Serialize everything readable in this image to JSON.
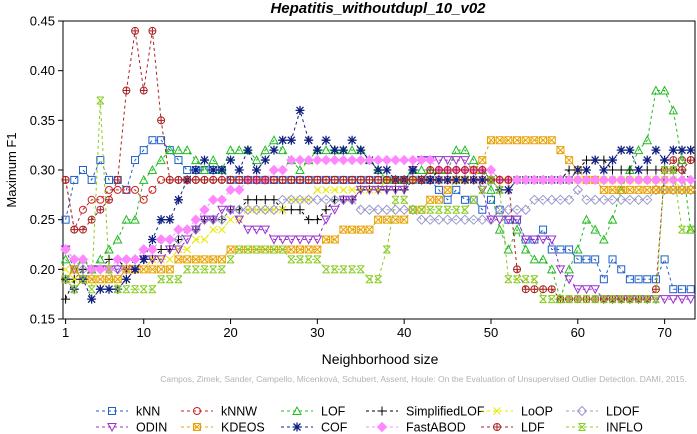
{
  "chart_data": {
    "type": "line",
    "title": "Hepatitis_withoutdupl_10_v02",
    "xlabel": "Neighborhood size",
    "ylabel": "Maximum F1",
    "xlim": [
      1,
      73
    ],
    "ylim": [
      0.15,
      0.45
    ],
    "x_ticks": [
      10,
      20,
      30,
      40,
      50,
      60,
      70
    ],
    "x_tick_labels": [
      "10",
      "20",
      "30",
      "40",
      "50",
      "60",
      "70"
    ],
    "y_ticks": [
      0.15,
      0.2,
      0.25,
      0.3,
      0.35,
      0.4,
      0.45
    ],
    "y_tick_labels": [
      "0.15",
      "0.20",
      "0.25",
      "0.30",
      "0.35",
      "0.40",
      "0.45"
    ],
    "x_first_tick": "1",
    "grid": false,
    "legend_position": "bottom",
    "credit": "Campos, Zimek, Sander, Campello, Micenková, Schubert, Assent, Houle: On the Evaluation of Unsupervised Outlier Detection. DAMI, 2015.",
    "series": [
      {
        "name": "kNN",
        "color": "#1f5fc8",
        "marker": "square",
        "values": [
          0.25,
          0.29,
          0.3,
          0.29,
          0.31,
          0.29,
          0.29,
          0.28,
          0.31,
          0.32,
          0.33,
          0.33,
          0.32,
          0.31,
          0.3,
          0.3,
          0.3,
          0.3,
          0.3,
          0.29,
          0.29,
          0.29,
          0.29,
          0.29,
          0.29,
          0.29,
          0.29,
          0.29,
          0.29,
          0.29,
          0.29,
          0.29,
          0.29,
          0.29,
          0.29,
          0.29,
          0.29,
          0.29,
          0.29,
          0.29,
          0.29,
          0.29,
          0.29,
          0.28,
          0.27,
          0.28,
          0.27,
          0.27,
          0.26,
          0.27,
          0.26,
          0.25,
          0.25,
          0.23,
          0.23,
          0.24,
          0.22,
          0.22,
          0.22,
          0.21,
          0.21,
          0.21,
          0.19,
          0.21,
          0.2,
          0.19,
          0.19,
          0.19,
          0.19,
          0.21,
          0.18,
          0.18,
          0.18
        ]
      },
      {
        "name": "kNNW",
        "color": "#cc2222",
        "marker": "circle",
        "values": [
          0.29,
          0.24,
          0.26,
          0.27,
          0.27,
          0.28,
          0.28,
          0.28,
          0.28,
          0.27,
          0.28,
          0.29,
          0.29,
          0.29,
          0.29,
          0.29,
          0.29,
          0.29,
          0.29,
          0.29,
          0.29,
          0.29,
          0.29,
          0.29,
          0.29,
          0.29,
          0.29,
          0.29,
          0.29,
          0.29,
          0.29,
          0.29,
          0.29,
          0.29,
          0.29,
          0.29,
          0.29,
          0.29,
          0.29,
          0.29,
          0.29,
          0.29,
          0.29,
          0.29,
          0.29,
          0.29,
          0.29,
          0.29,
          0.29,
          0.29,
          0.29,
          0.29,
          0.29,
          0.29,
          0.29,
          0.29,
          0.29,
          0.29,
          0.29,
          0.29,
          0.29,
          0.29,
          0.29,
          0.29,
          0.29,
          0.29,
          0.29,
          0.29,
          0.29,
          0.29,
          0.3,
          0.31,
          0.31
        ]
      },
      {
        "name": "LOF",
        "color": "#22bb22",
        "marker": "triangle-up",
        "values": [
          0.21,
          0.2,
          0.21,
          0.2,
          0.21,
          0.22,
          0.23,
          0.25,
          0.25,
          0.29,
          0.3,
          0.31,
          0.32,
          0.32,
          0.32,
          0.31,
          0.3,
          0.31,
          0.3,
          0.32,
          0.32,
          0.32,
          0.31,
          0.32,
          0.33,
          0.32,
          0.31,
          0.3,
          0.31,
          0.32,
          0.32,
          0.32,
          0.32,
          0.32,
          0.32,
          0.31,
          0.3,
          0.29,
          0.29,
          0.29,
          0.3,
          0.3,
          0.3,
          0.3,
          0.3,
          0.32,
          0.32,
          0.31,
          0.3,
          0.28,
          0.24,
          0.22,
          0.24,
          0.22,
          0.21,
          0.21,
          0.2,
          0.17,
          0.2,
          0.22,
          0.25,
          0.24,
          0.23,
          0.25,
          0.28,
          0.3,
          0.32,
          0.33,
          0.38,
          0.38,
          0.36,
          0.31,
          0.24
        ]
      },
      {
        "name": "SimplifiedLOF",
        "color": "#000000",
        "marker": "plus",
        "values": [
          0.17,
          0.19,
          0.2,
          0.2,
          0.2,
          0.21,
          0.21,
          0.2,
          0.21,
          0.21,
          0.21,
          0.22,
          0.22,
          0.23,
          0.24,
          0.24,
          0.25,
          0.25,
          0.25,
          0.26,
          0.26,
          0.27,
          0.27,
          0.27,
          0.27,
          0.26,
          0.26,
          0.26,
          0.25,
          0.25,
          0.26,
          0.27,
          0.27,
          0.27,
          0.28,
          0.28,
          0.28,
          0.28,
          0.28,
          0.28,
          0.29,
          0.29,
          0.29,
          0.3,
          0.3,
          0.3,
          0.3,
          0.3,
          0.3,
          0.3,
          0.29,
          0.29,
          0.29,
          0.29,
          0.29,
          0.29,
          0.29,
          0.29,
          0.3,
          0.3,
          0.31,
          0.31,
          0.31,
          0.3,
          0.3,
          0.3,
          0.3,
          0.3,
          0.3,
          0.3,
          0.3,
          0.3,
          0.29
        ]
      },
      {
        "name": "LoOP",
        "color": "#e8e800",
        "marker": "x",
        "values": [
          0.2,
          0.19,
          0.19,
          0.19,
          0.18,
          0.19,
          0.19,
          0.19,
          0.2,
          0.2,
          0.21,
          0.21,
          0.21,
          0.22,
          0.22,
          0.23,
          0.23,
          0.24,
          0.24,
          0.25,
          0.25,
          0.26,
          0.26,
          0.26,
          0.26,
          0.26,
          0.27,
          0.27,
          0.27,
          0.28,
          0.28,
          0.28,
          0.28,
          0.28,
          0.28,
          0.28,
          0.28,
          0.29,
          0.29,
          0.29,
          0.29,
          0.29,
          0.29,
          0.29,
          0.29,
          0.29,
          0.29,
          0.29,
          0.29,
          0.29,
          0.29,
          0.29,
          0.29,
          0.29,
          0.29,
          0.29,
          0.29,
          0.29,
          0.29,
          0.29,
          0.29,
          0.29,
          0.29,
          0.29,
          0.29,
          0.29,
          0.29,
          0.29,
          0.29,
          0.29,
          0.29,
          0.28,
          0.28
        ]
      },
      {
        "name": "LDOF",
        "color": "#9999cc",
        "marker": "diamond",
        "values": [
          0.22,
          0.21,
          0.2,
          0.2,
          0.2,
          0.2,
          0.2,
          0.21,
          0.21,
          0.22,
          0.22,
          0.23,
          0.23,
          0.23,
          0.24,
          0.24,
          0.25,
          0.25,
          0.25,
          0.26,
          0.26,
          0.26,
          0.26,
          0.26,
          0.26,
          0.27,
          0.27,
          0.27,
          0.27,
          0.27,
          0.27,
          0.27,
          0.27,
          0.27,
          0.26,
          0.26,
          0.26,
          0.26,
          0.26,
          0.26,
          0.26,
          0.25,
          0.25,
          0.25,
          0.25,
          0.25,
          0.25,
          0.25,
          0.25,
          0.25,
          0.26,
          0.26,
          0.26,
          0.26,
          0.27,
          0.27,
          0.27,
          0.27,
          0.27,
          0.28,
          0.27,
          0.27,
          0.27,
          0.27,
          0.27,
          0.27,
          0.27,
          0.27,
          0.28,
          0.28,
          0.28,
          0.28,
          0.28
        ]
      },
      {
        "name": "ODIN",
        "color": "#9933cc",
        "marker": "triangle-down",
        "values": [
          0.22,
          0.2,
          0.19,
          0.2,
          0.2,
          0.2,
          0.2,
          0.2,
          0.2,
          0.21,
          0.21,
          0.21,
          0.22,
          0.22,
          0.23,
          0.24,
          0.25,
          0.25,
          0.26,
          0.26,
          0.25,
          0.24,
          0.24,
          0.24,
          0.23,
          0.23,
          0.23,
          0.23,
          0.23,
          0.23,
          0.25,
          0.26,
          0.27,
          0.27,
          0.28,
          0.28,
          0.28,
          0.28,
          0.28,
          0.28,
          0.3,
          0.31,
          0.31,
          0.31,
          0.31,
          0.31,
          0.31,
          0.3,
          0.28,
          0.25,
          0.25,
          0.25,
          0.25,
          0.23,
          0.23,
          0.23,
          0.23,
          0.2,
          0.19,
          0.18,
          0.18,
          0.18,
          0.17,
          0.17,
          0.17,
          0.17,
          0.17,
          0.17,
          0.17,
          0.17,
          0.17,
          0.17,
          0.17
        ]
      },
      {
        "name": "KDEOS",
        "color": "#e8a000",
        "marker": "square-x",
        "values": [
          0.19,
          0.2,
          0.19,
          0.19,
          0.19,
          0.19,
          0.19,
          0.2,
          0.2,
          0.2,
          0.2,
          0.2,
          0.2,
          0.21,
          0.21,
          0.21,
          0.21,
          0.21,
          0.21,
          0.22,
          0.22,
          0.22,
          0.22,
          0.22,
          0.22,
          0.22,
          0.22,
          0.22,
          0.22,
          0.22,
          0.23,
          0.23,
          0.24,
          0.24,
          0.24,
          0.24,
          0.25,
          0.25,
          0.25,
          0.25,
          0.26,
          0.26,
          0.27,
          0.27,
          0.28,
          0.29,
          0.29,
          0.3,
          0.31,
          0.33,
          0.33,
          0.33,
          0.33,
          0.33,
          0.33,
          0.33,
          0.33,
          0.32,
          0.31,
          0.3,
          0.29,
          0.29,
          0.28,
          0.28,
          0.28,
          0.28,
          0.28,
          0.28,
          0.28,
          0.28,
          0.28,
          0.28,
          0.28
        ]
      },
      {
        "name": "COF",
        "color": "#102080",
        "marker": "asterisk",
        "values": [
          0.19,
          0.18,
          0.19,
          0.17,
          0.18,
          0.18,
          0.18,
          0.19,
          0.2,
          0.21,
          0.23,
          0.25,
          0.25,
          0.27,
          0.29,
          0.3,
          0.31,
          0.3,
          0.3,
          0.31,
          0.3,
          0.32,
          0.3,
          0.31,
          0.32,
          0.33,
          0.33,
          0.36,
          0.33,
          0.32,
          0.33,
          0.32,
          0.32,
          0.33,
          0.32,
          0.31,
          0.3,
          0.3,
          0.29,
          0.29,
          0.3,
          0.29,
          0.29,
          0.29,
          0.29,
          0.29,
          0.29,
          0.29,
          0.29,
          0.29,
          0.28,
          0.28,
          0.29,
          0.29,
          0.29,
          0.29,
          0.29,
          0.29,
          0.29,
          0.3,
          0.3,
          0.31,
          0.3,
          0.31,
          0.32,
          0.32,
          0.3,
          0.31,
          0.32,
          0.31,
          0.32,
          0.32,
          0.32
        ]
      },
      {
        "name": "FastABOD",
        "color": "#ff88ff",
        "marker": "diamond-filled",
        "values": [
          0.22,
          0.21,
          0.21,
          0.2,
          0.2,
          0.2,
          0.21,
          0.21,
          0.21,
          0.22,
          0.22,
          0.23,
          0.23,
          0.24,
          0.24,
          0.25,
          0.26,
          0.27,
          0.27,
          0.28,
          0.28,
          0.29,
          0.29,
          0.29,
          0.3,
          0.3,
          0.31,
          0.31,
          0.31,
          0.31,
          0.31,
          0.31,
          0.31,
          0.31,
          0.31,
          0.31,
          0.31,
          0.31,
          0.31,
          0.31,
          0.31,
          0.31,
          0.31,
          0.3,
          0.3,
          0.3,
          0.3,
          0.3,
          0.3,
          0.3,
          0.29,
          0.29,
          0.29,
          0.29,
          0.29,
          0.29,
          0.29,
          0.29,
          0.29,
          0.29,
          0.29,
          0.29,
          0.29,
          0.29,
          0.29,
          0.29,
          0.29,
          0.29,
          0.29,
          0.29,
          0.29,
          0.29,
          0.29
        ]
      },
      {
        "name": "LDF",
        "color": "#aa2222",
        "marker": "circle-plus",
        "values": [
          0.29,
          0.24,
          0.24,
          0.25,
          0.26,
          0.27,
          0.29,
          0.38,
          0.44,
          0.38,
          0.44,
          0.35,
          0.29,
          0.29,
          0.29,
          0.29,
          0.29,
          0.29,
          0.29,
          0.29,
          0.29,
          0.29,
          0.29,
          0.29,
          0.29,
          0.29,
          0.29,
          0.29,
          0.29,
          0.29,
          0.29,
          0.29,
          0.29,
          0.29,
          0.29,
          0.29,
          0.29,
          0.29,
          0.29,
          0.29,
          0.29,
          0.29,
          0.3,
          0.3,
          0.3,
          0.3,
          0.3,
          0.3,
          0.3,
          0.29,
          0.29,
          0.29,
          0.2,
          0.18,
          0.18,
          0.18,
          0.18,
          0.17,
          0.17,
          0.17,
          0.17,
          0.17,
          0.17,
          0.17,
          0.17,
          0.17,
          0.17,
          0.17,
          0.18,
          0.3,
          0.31,
          0.3,
          0.31
        ]
      },
      {
        "name": "INFLO",
        "color": "#88cc22",
        "marker": "hourglass",
        "values": [
          0.19,
          0.18,
          0.19,
          0.18,
          0.37,
          0.2,
          0.18,
          0.18,
          0.18,
          0.18,
          0.18,
          0.19,
          0.19,
          0.19,
          0.2,
          0.2,
          0.2,
          0.2,
          0.2,
          0.21,
          0.22,
          0.22,
          0.22,
          0.22,
          0.22,
          0.22,
          0.21,
          0.21,
          0.21,
          0.21,
          0.2,
          0.2,
          0.2,
          0.2,
          0.2,
          0.19,
          0.19,
          0.22,
          0.27,
          0.27,
          0.26,
          0.26,
          0.26,
          0.26,
          0.26,
          0.26,
          0.26,
          0.27,
          0.28,
          0.29,
          0.28,
          0.19,
          0.19,
          0.19,
          0.19,
          0.17,
          0.17,
          0.17,
          0.17,
          0.17,
          0.17,
          0.17,
          0.17,
          0.17,
          0.17,
          0.17,
          0.17,
          0.17,
          0.17,
          0.3,
          0.3,
          0.24,
          0.24
        ]
      }
    ]
  }
}
